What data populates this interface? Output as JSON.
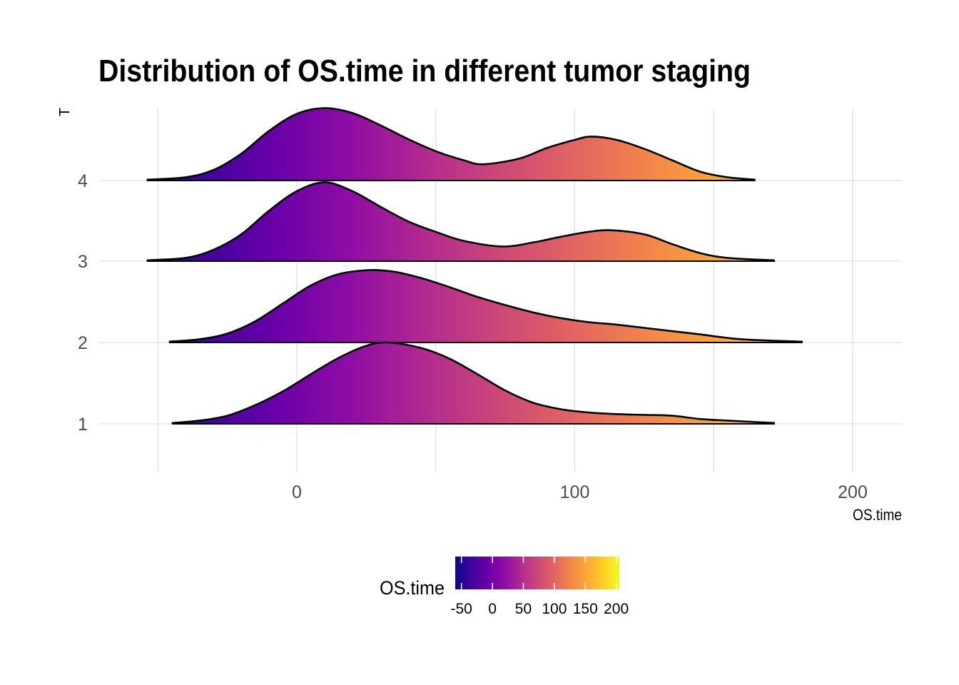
{
  "chart_data": {
    "type": "ridgeline",
    "title": "Distribution of OS.time in different tumor staging",
    "xlabel": "OS.time",
    "ylabel": "T",
    "xlim": [
      -70,
      218
    ],
    "x_ticks": [
      0,
      100,
      200
    ],
    "x_minor_ticks": [
      -50,
      50,
      150
    ],
    "grid": true,
    "categories": [
      "1",
      "2",
      "3",
      "4"
    ],
    "series": [
      {
        "name": "1",
        "points": [
          [
            -45,
            0.01
          ],
          [
            -35,
            0.04
          ],
          [
            -25,
            0.1
          ],
          [
            -15,
            0.23
          ],
          [
            -5,
            0.4
          ],
          [
            5,
            0.61
          ],
          [
            15,
            0.81
          ],
          [
            25,
            0.96
          ],
          [
            33,
            1.0
          ],
          [
            45,
            0.93
          ],
          [
            55,
            0.8
          ],
          [
            65,
            0.61
          ],
          [
            75,
            0.41
          ],
          [
            85,
            0.26
          ],
          [
            95,
            0.18
          ],
          [
            105,
            0.14
          ],
          [
            115,
            0.12
          ],
          [
            125,
            0.11
          ],
          [
            135,
            0.1
          ],
          [
            145,
            0.06
          ],
          [
            155,
            0.04
          ],
          [
            172,
            0.01
          ]
        ]
      },
      {
        "name": "2",
        "points": [
          [
            -46,
            0.01
          ],
          [
            -35,
            0.04
          ],
          [
            -25,
            0.11
          ],
          [
            -15,
            0.26
          ],
          [
            -5,
            0.48
          ],
          [
            5,
            0.7
          ],
          [
            15,
            0.84
          ],
          [
            26,
            0.89
          ],
          [
            35,
            0.87
          ],
          [
            45,
            0.79
          ],
          [
            55,
            0.68
          ],
          [
            65,
            0.56
          ],
          [
            75,
            0.46
          ],
          [
            85,
            0.37
          ],
          [
            95,
            0.3
          ],
          [
            105,
            0.25
          ],
          [
            115,
            0.22
          ],
          [
            125,
            0.18
          ],
          [
            135,
            0.14
          ],
          [
            145,
            0.1
          ],
          [
            160,
            0.04
          ],
          [
            182,
            0.01
          ]
        ]
      },
      {
        "name": "3",
        "points": [
          [
            -54,
            0.01
          ],
          [
            -40,
            0.04
          ],
          [
            -30,
            0.14
          ],
          [
            -20,
            0.33
          ],
          [
            -10,
            0.62
          ],
          [
            0,
            0.86
          ],
          [
            10,
            0.97
          ],
          [
            20,
            0.86
          ],
          [
            30,
            0.67
          ],
          [
            40,
            0.49
          ],
          [
            50,
            0.36
          ],
          [
            60,
            0.25
          ],
          [
            74,
            0.18
          ],
          [
            85,
            0.23
          ],
          [
            95,
            0.3
          ],
          [
            105,
            0.36
          ],
          [
            113,
            0.38
          ],
          [
            125,
            0.33
          ],
          [
            135,
            0.21
          ],
          [
            145,
            0.1
          ],
          [
            155,
            0.04
          ],
          [
            172,
            0.01
          ]
        ]
      },
      {
        "name": "4",
        "points": [
          [
            -54,
            0.01
          ],
          [
            -40,
            0.04
          ],
          [
            -30,
            0.13
          ],
          [
            -20,
            0.33
          ],
          [
            -10,
            0.61
          ],
          [
            0,
            0.82
          ],
          [
            10,
            0.89
          ],
          [
            20,
            0.83
          ],
          [
            30,
            0.68
          ],
          [
            40,
            0.51
          ],
          [
            50,
            0.36
          ],
          [
            60,
            0.25
          ],
          [
            67,
            0.2
          ],
          [
            80,
            0.27
          ],
          [
            90,
            0.4
          ],
          [
            100,
            0.5
          ],
          [
            106,
            0.54
          ],
          [
            115,
            0.5
          ],
          [
            125,
            0.39
          ],
          [
            135,
            0.25
          ],
          [
            145,
            0.11
          ],
          [
            155,
            0.04
          ],
          [
            165,
            0.01
          ]
        ]
      }
    ],
    "legend": {
      "title": "OS.time",
      "position": "bottom",
      "range": [
        -60,
        205
      ],
      "ticks": [
        "-50",
        "0",
        "50",
        "100",
        "150",
        "200"
      ],
      "tick_values": [
        -50,
        0,
        50,
        100,
        150,
        200
      ],
      "colormap": [
        "#0d0887",
        "#41049d",
        "#6a00a8",
        "#8f0da4",
        "#b12a90",
        "#cc4778",
        "#e16462",
        "#f2844b",
        "#fca636",
        "#fcce25",
        "#f0f921"
      ]
    }
  }
}
